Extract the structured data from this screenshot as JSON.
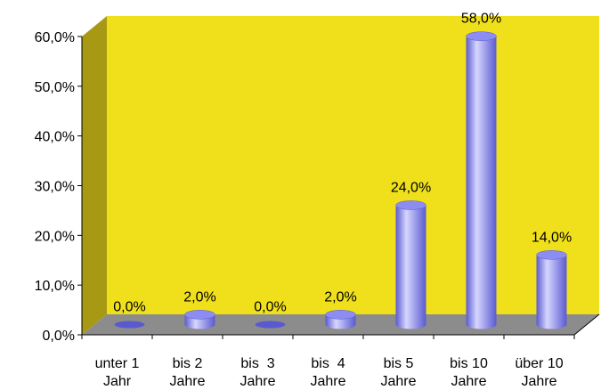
{
  "chart_data": {
    "type": "bar",
    "categories": [
      [
        "unter 1",
        "Jahr"
      ],
      [
        "bis 2",
        "Jahre"
      ],
      [
        "bis  3",
        "Jahre"
      ],
      [
        "bis  4",
        "Jahre"
      ],
      [
        "bis 5",
        "Jahre"
      ],
      [
        "bis 10",
        "Jahre"
      ],
      [
        "über 10",
        "Jahre"
      ]
    ],
    "values": [
      0.0,
      2.0,
      0.0,
      2.0,
      24.0,
      58.0,
      14.0
    ],
    "data_labels": [
      "0,0%",
      "2,0%",
      "0,0%",
      "2,0%",
      "24,0%",
      "58,0%",
      "14,0%"
    ],
    "y_ticks": [
      0,
      10,
      20,
      30,
      40,
      50,
      60
    ],
    "y_tick_labels": [
      "0,0%",
      "10,0%",
      "20,0%",
      "30,0%",
      "40,0%",
      "50,0%",
      "60,0%"
    ],
    "ylim": [
      0,
      60
    ],
    "grid": false,
    "title": "",
    "xlabel": "",
    "ylabel": "",
    "style": "3d-cylinder",
    "colors": {
      "back_wall": "#f0e01c",
      "side_wall": "#a89914",
      "floor": "#8c8c8c",
      "bar": "#8c8cf2",
      "bar_light": "#d6d6ff",
      "bar_dark": "#5a5ad0"
    }
  }
}
